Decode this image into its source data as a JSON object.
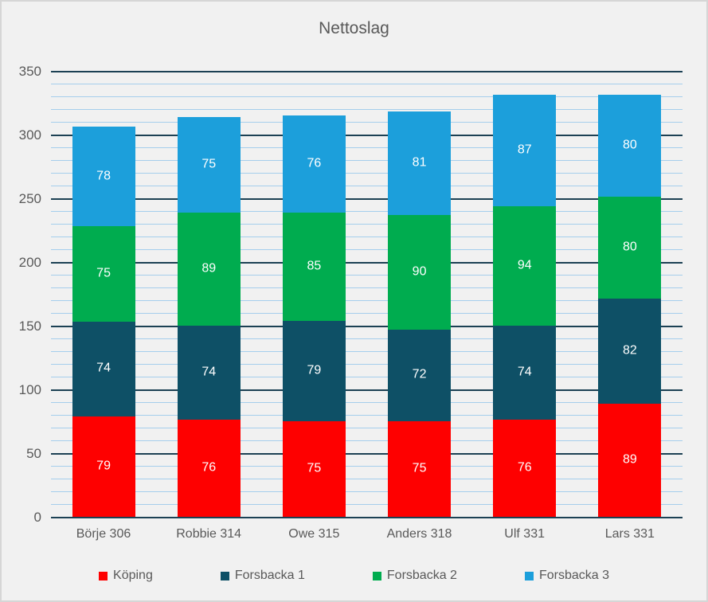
{
  "chart_data": {
    "type": "bar",
    "variant": "stacked-column",
    "title": "Nettoslag",
    "categories": [
      "Börje 306",
      "Robbie 314",
      "Owe 315",
      "Anders 318",
      "Ulf 331",
      "Lars 331"
    ],
    "series": [
      {
        "name": "Köping",
        "color": "#fe0000",
        "values": [
          79,
          76,
          75,
          75,
          76,
          89
        ]
      },
      {
        "name": "Forsbacka 1",
        "color": "#0e5066",
        "values": [
          74,
          74,
          79,
          72,
          74,
          82
        ]
      },
      {
        "name": "Forsbacka 2",
        "color": "#00ac4f",
        "values": [
          75,
          89,
          85,
          90,
          94,
          80
        ]
      },
      {
        "name": "Forsbacka 3",
        "color": "#1c9fdb",
        "values": [
          78,
          75,
          76,
          81,
          87,
          80
        ]
      }
    ],
    "totals": [
      306,
      314,
      315,
      318,
      331,
      331
    ],
    "y_axis": {
      "min": 0,
      "max": 350,
      "major_step": 50,
      "minor_step": 10,
      "tick_labels": [
        "0",
        "50",
        "100",
        "150",
        "200",
        "250",
        "300",
        "350"
      ]
    },
    "grid": {
      "major_color": "#1c4154",
      "minor_color": "#a5ceec",
      "major": true,
      "minor": true
    },
    "legend_position": "bottom",
    "data_label_color": "#ffffff",
    "text_color": "#595959",
    "background_color": "#f1f1f1"
  }
}
